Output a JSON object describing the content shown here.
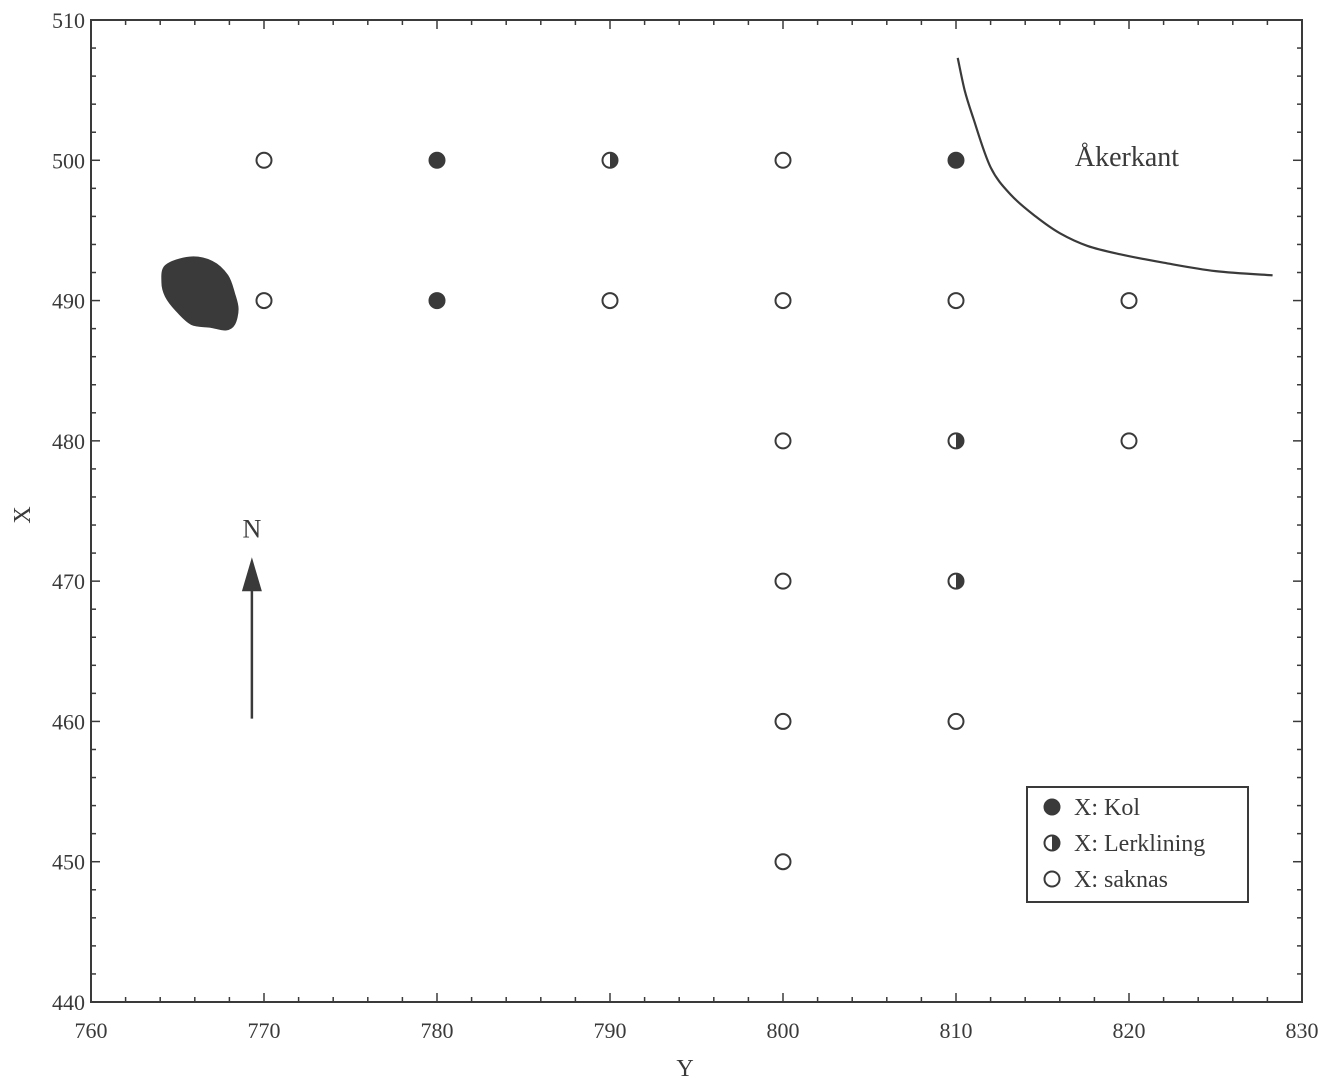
{
  "chart_data": {
    "type": "scatter",
    "title": "",
    "xlabel": "Y",
    "ylabel": "X",
    "xlim": [
      760,
      830
    ],
    "ylim": [
      440,
      510
    ],
    "xticks": [
      760,
      770,
      780,
      790,
      800,
      810,
      820,
      830
    ],
    "yticks": [
      440,
      450,
      460,
      470,
      480,
      490,
      500,
      510
    ],
    "grid": false,
    "legend_position": "bottom-right",
    "legend": [
      {
        "key": "kol",
        "label": "X: Kol",
        "marker": "filled"
      },
      {
        "key": "lerklining",
        "label": "X: Lerklining",
        "marker": "half"
      },
      {
        "key": "saknas",
        "label": "X: saknas",
        "marker": "open"
      }
    ],
    "points": [
      {
        "y": 770,
        "x": 500,
        "type": "saknas"
      },
      {
        "y": 780,
        "x": 500,
        "type": "kol"
      },
      {
        "y": 790,
        "x": 500,
        "type": "lerklining"
      },
      {
        "y": 800,
        "x": 500,
        "type": "saknas"
      },
      {
        "y": 810,
        "x": 500,
        "type": "kol"
      },
      {
        "y": 770,
        "x": 490,
        "type": "saknas"
      },
      {
        "y": 780,
        "x": 490,
        "type": "kol"
      },
      {
        "y": 790,
        "x": 490,
        "type": "saknas"
      },
      {
        "y": 800,
        "x": 490,
        "type": "saknas"
      },
      {
        "y": 810,
        "x": 490,
        "type": "saknas"
      },
      {
        "y": 820,
        "x": 490,
        "type": "saknas"
      },
      {
        "y": 800,
        "x": 480,
        "type": "saknas"
      },
      {
        "y": 810,
        "x": 480,
        "type": "lerklining"
      },
      {
        "y": 820,
        "x": 480,
        "type": "saknas"
      },
      {
        "y": 800,
        "x": 470,
        "type": "saknas"
      },
      {
        "y": 810,
        "x": 470,
        "type": "lerklining"
      },
      {
        "y": 800,
        "x": 460,
        "type": "saknas"
      },
      {
        "y": 810,
        "x": 460,
        "type": "saknas"
      },
      {
        "y": 800,
        "x": 450,
        "type": "saknas"
      }
    ],
    "field_edge": {
      "label": "Åkerkant",
      "path": [
        [
          810.1,
          507.3
        ],
        [
          810.5,
          505
        ],
        [
          811,
          503
        ],
        [
          812,
          499.5
        ],
        [
          813.2,
          497.5
        ],
        [
          814.6,
          496
        ],
        [
          816,
          494.8
        ],
        [
          817.6,
          493.9
        ],
        [
          819.5,
          493.3
        ],
        [
          822,
          492.7
        ],
        [
          825,
          492.1
        ],
        [
          828.3,
          491.8
        ]
      ]
    },
    "blob_outline": [
      [
        765.7,
        493.1
      ],
      [
        767,
        492.8
      ],
      [
        767.9,
        491.8
      ],
      [
        768.3,
        490.5
      ],
      [
        768.5,
        489.4
      ],
      [
        768.3,
        488.3
      ],
      [
        767.8,
        487.9
      ],
      [
        766.9,
        488.1
      ],
      [
        765.8,
        488.3
      ],
      [
        764.9,
        489.3
      ],
      [
        764.3,
        490.3
      ],
      [
        764.1,
        491.3
      ],
      [
        764.3,
        492.5
      ]
    ],
    "north_arrow": {
      "label": "N",
      "y": 769.3,
      "x_from": 460.2,
      "x_to": 471.7
    }
  }
}
